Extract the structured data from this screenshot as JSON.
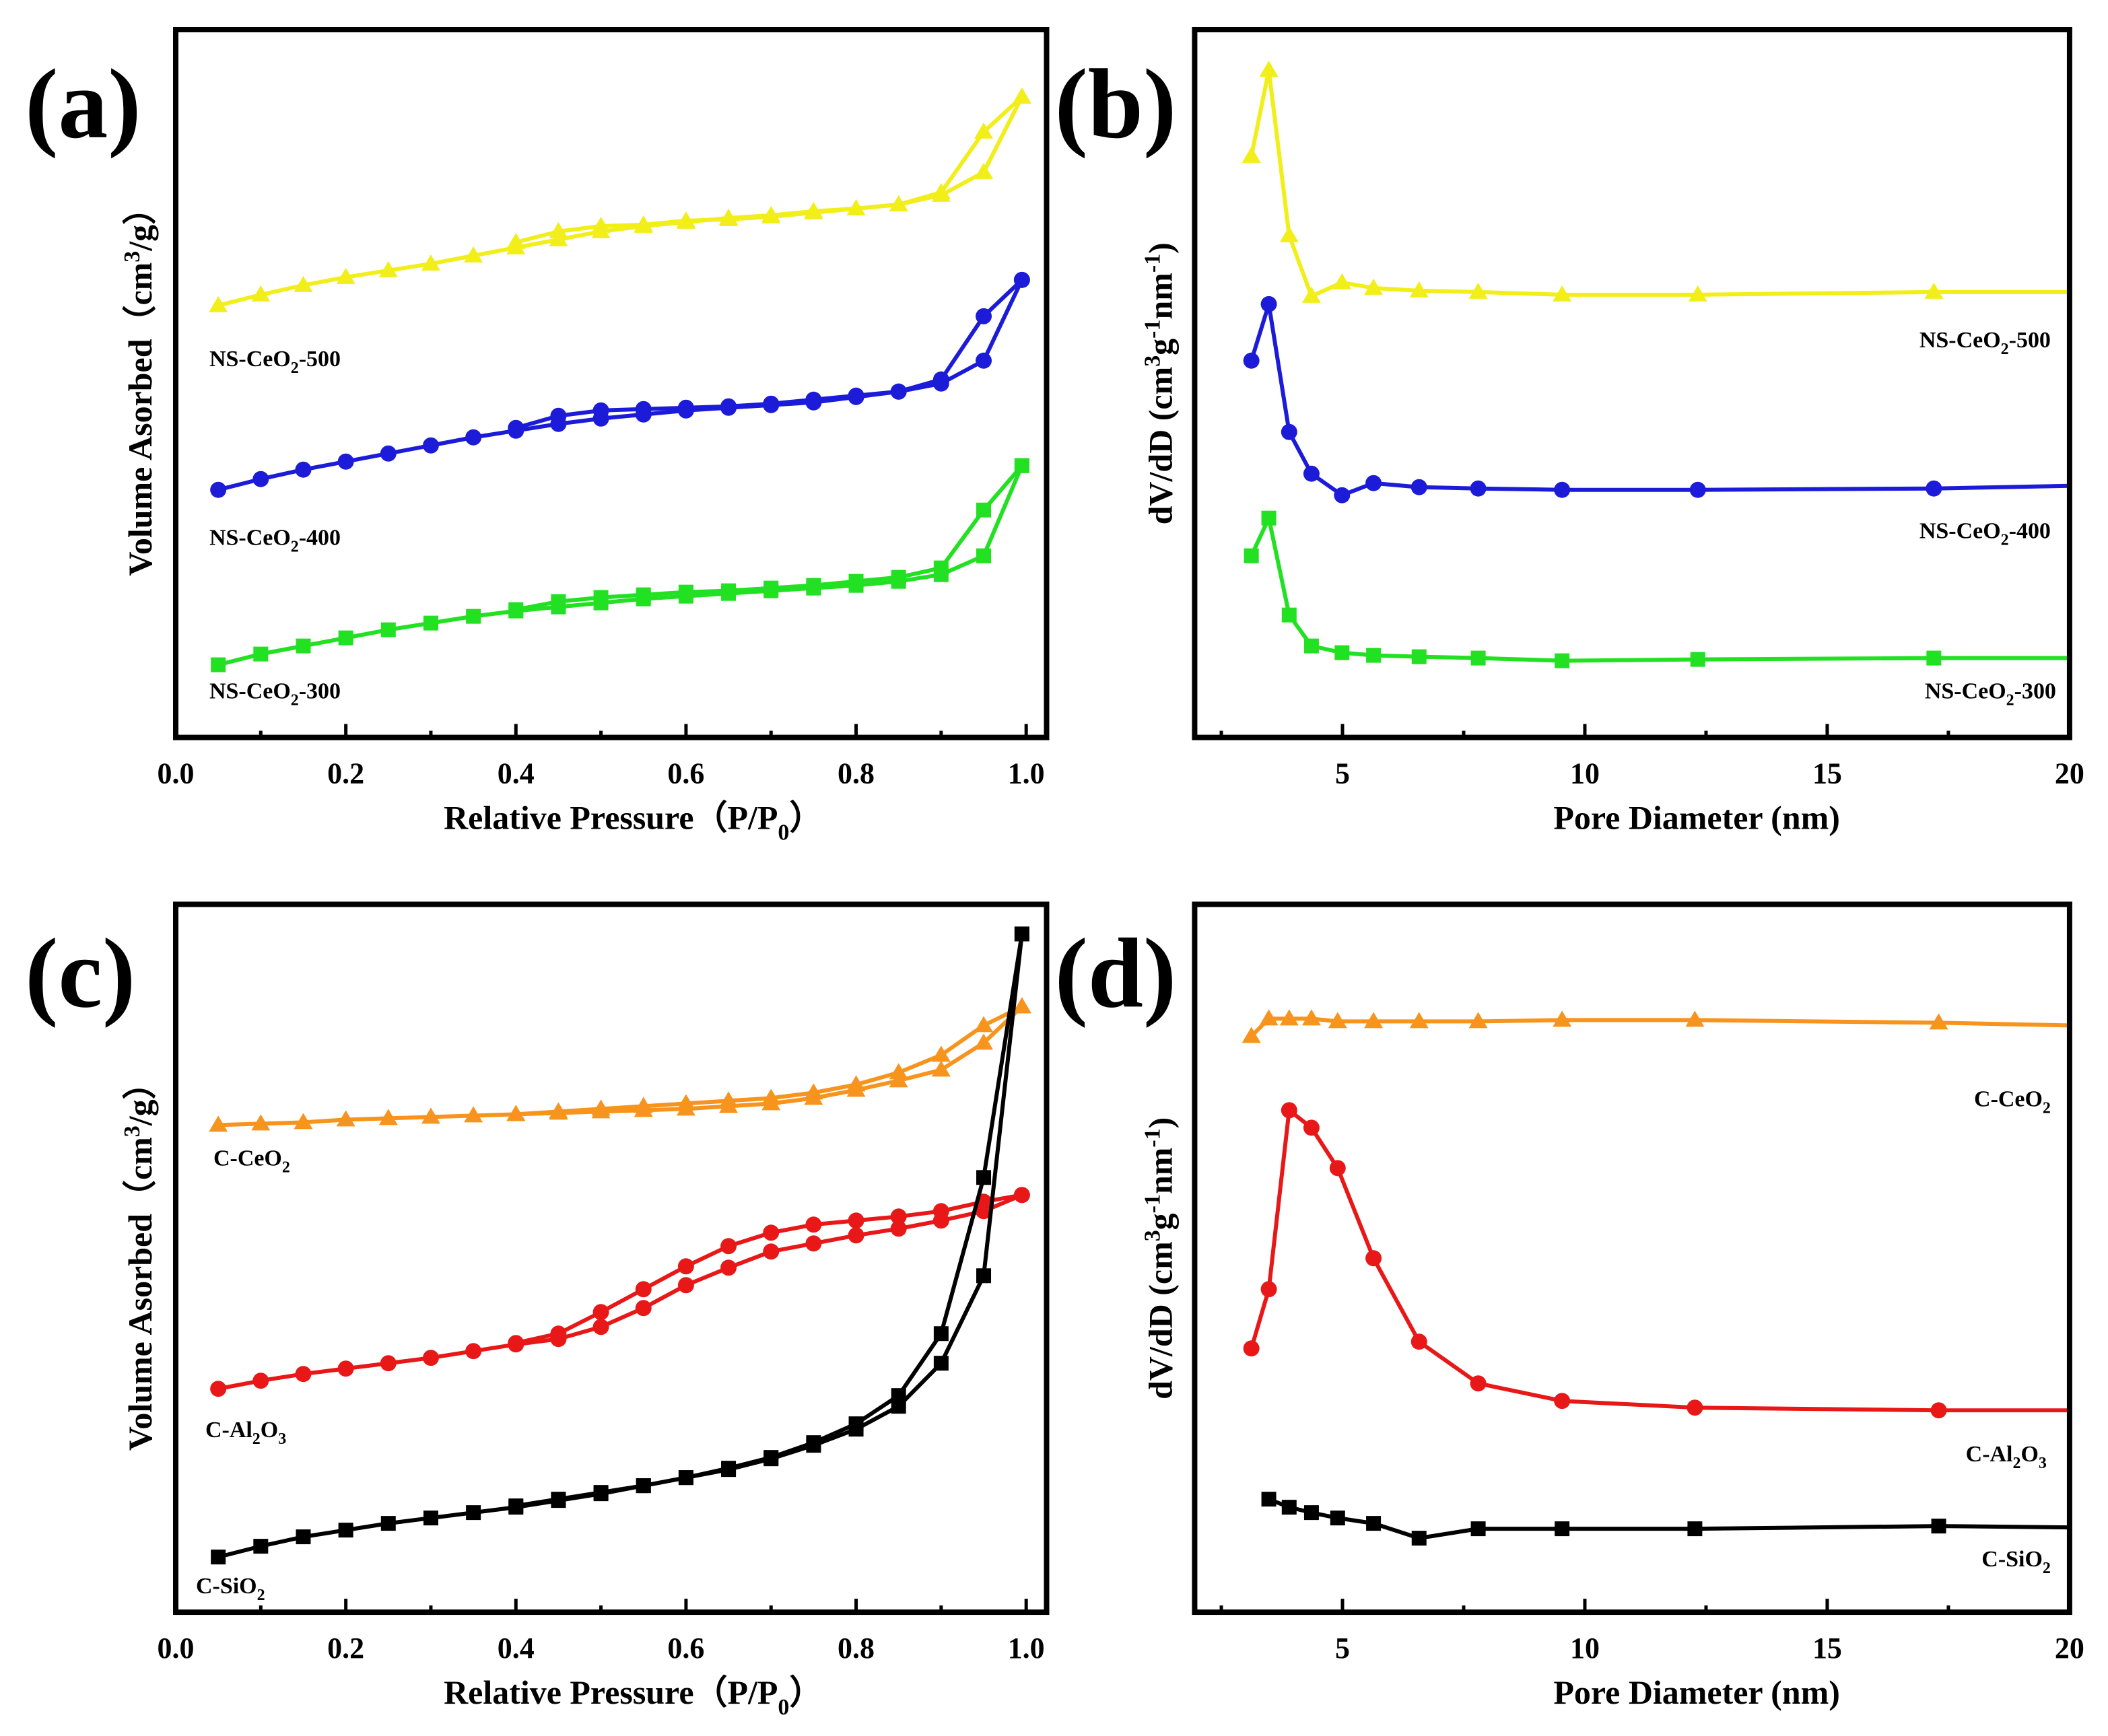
{
  "chart_data": [
    {
      "id": "a",
      "panel_label": "(a)",
      "type": "line",
      "xlabel": {
        "pre": "Relative Pressure（P/P",
        "sub": "0",
        "post": "）"
      },
      "ylabel": {
        "pre": "Volume Asorbed（cm",
        "sup": "3",
        "post": "/g）"
      },
      "xlim": [
        0,
        1.024
      ],
      "ylim": [
        0,
        105.2
      ],
      "xticks": [
        0.0,
        0.2,
        0.4,
        0.6,
        0.8,
        1.0
      ],
      "xtick_labels": [
        "0.0",
        "0.2",
        "0.4",
        "0.6",
        "0.8",
        "1.0"
      ],
      "minor_step": 0.1,
      "y_units": "arbitrary (curves offset)",
      "series": [
        {
          "name": "NS-CeO2-500",
          "label": {
            "pre": "NS-CeO",
            "sub": "2",
            "post": "-500"
          },
          "color": "#f2ee1a",
          "marker": "triangle",
          "adsorption": {
            "x": [
              0.05,
              0.1,
              0.15,
              0.2,
              0.25,
              0.3,
              0.35,
              0.4,
              0.45,
              0.5,
              0.55,
              0.6,
              0.65,
              0.7,
              0.75,
              0.8,
              0.85,
              0.9,
              0.95,
              0.995
            ],
            "y": [
              64.2,
              65.8,
              67.2,
              68.4,
              69.4,
              70.4,
              71.6,
              72.8,
              74,
              75.2,
              76,
              76.6,
              77.2,
              77.6,
              78.2,
              78.6,
              79.2,
              80.6,
              84,
              95.2
            ]
          },
          "desorption": {
            "x": [
              0.4,
              0.45,
              0.5,
              0.55,
              0.6,
              0.65,
              0.7,
              0.75,
              0.8,
              0.85,
              0.9,
              0.95,
              0.995
            ],
            "y": [
              73.6,
              75.2,
              76,
              76.2,
              76.8,
              77,
              77.4,
              78,
              78.6,
              79.2,
              81,
              90,
              95.2
            ]
          }
        },
        {
          "name": "NS-CeO2-400",
          "label": {
            "pre": "NS-CeO",
            "sub": "2",
            "post": "-400"
          },
          "color": "#1c1cd8",
          "marker": "circle",
          "adsorption": {
            "x": [
              0.05,
              0.1,
              0.15,
              0.2,
              0.25,
              0.3,
              0.35,
              0.4,
              0.45,
              0.5,
              0.55,
              0.6,
              0.65,
              0.7,
              0.75,
              0.8,
              0.85,
              0.9,
              0.95,
              0.995
            ],
            "y": [
              36.8,
              38.4,
              39.8,
              41,
              42.2,
              43.4,
              44.6,
              45.6,
              46.6,
              47.4,
              48,
              48.6,
              49,
              49.4,
              49.8,
              50.6,
              51.4,
              52.6,
              56,
              68
            ]
          },
          "desorption": {
            "x": [
              0.4,
              0.45,
              0.5,
              0.55,
              0.6,
              0.65,
              0.7,
              0.75,
              0.8,
              0.85,
              0.9,
              0.95,
              0.995
            ],
            "y": [
              46,
              47.8,
              48.6,
              48.8,
              49,
              49.2,
              49.6,
              50.2,
              50.8,
              51.4,
              53.2,
              62.6,
              68
            ]
          }
        },
        {
          "name": "NS-CeO2-300",
          "label": {
            "pre": "NS-CeO",
            "sub": "2",
            "post": "-300"
          },
          "color": "#22e022",
          "marker": "square",
          "adsorption": {
            "x": [
              0.05,
              0.1,
              0.15,
              0.2,
              0.25,
              0.3,
              0.35,
              0.4,
              0.45,
              0.5,
              0.55,
              0.6,
              0.65,
              0.7,
              0.75,
              0.8,
              0.85,
              0.9,
              0.95,
              0.995
            ],
            "y": [
              10.8,
              12.4,
              13.6,
              14.8,
              16,
              17,
              18,
              18.8,
              19.4,
              20,
              20.6,
              21,
              21.4,
              21.8,
              22.2,
              22.6,
              23.2,
              24.2,
              27,
              40.4
            ]
          },
          "desorption": {
            "x": [
              0.4,
              0.45,
              0.5,
              0.55,
              0.6,
              0.65,
              0.7,
              0.75,
              0.8,
              0.85,
              0.9,
              0.95,
              0.995
            ],
            "y": [
              19,
              20.2,
              20.8,
              21.2,
              21.6,
              21.8,
              22.2,
              22.6,
              23.2,
              23.8,
              25.2,
              33.8,
              40.4
            ]
          }
        }
      ]
    },
    {
      "id": "b",
      "panel_label": "(b)",
      "type": "line",
      "xlabel": {
        "pre": "Pore Diameter (nm)",
        "sub": "",
        "post": ""
      },
      "ylabel": {
        "pre": "dV/dD (cm",
        "sup": "3",
        "mid": "g",
        "sup2": "-1",
        "mid2": "nm",
        "sup3": "-1",
        "post": ")"
      },
      "xlim": [
        1.95,
        20
      ],
      "ylim": [
        0,
        105.2
      ],
      "xticks": [
        5,
        10,
        15,
        20
      ],
      "xtick_labels": [
        "5",
        "10",
        "15",
        "20"
      ],
      "minor_step": 2.5,
      "y_units": "arbitrary (curves offset)",
      "series": [
        {
          "name": "NS-CeO2-500",
          "label": {
            "pre": "NS-CeO",
            "sub": "2",
            "post": "-500"
          },
          "color": "#f2ee1a",
          "marker": "triangle",
          "x": [
            3.12,
            3.48,
            3.9,
            4.36,
            4.99,
            5.64,
            6.58,
            7.8,
            9.53,
            12.33,
            17.2,
            20
          ],
          "y": [
            86.4,
            99.2,
            74.6,
            65.6,
            67.6,
            66.8,
            66.4,
            66.2,
            65.8,
            65.8,
            66.2,
            66.2
          ]
        },
        {
          "name": "NS-CeO2-400",
          "label": {
            "pre": "NS-CeO",
            "sub": "2",
            "post": "-400"
          },
          "color": "#1c1cd8",
          "marker": "circle",
          "x": [
            3.12,
            3.48,
            3.9,
            4.36,
            4.99,
            5.64,
            6.58,
            7.8,
            9.53,
            12.33,
            17.2,
            20
          ],
          "y": [
            56,
            64.4,
            45.4,
            39.2,
            36,
            37.8,
            37.2,
            37,
            36.8,
            36.8,
            37,
            37.4
          ]
        },
        {
          "name": "NS-CeO2-300",
          "label": {
            "pre": "NS-CeO",
            "sub": "2",
            "post": "-300"
          },
          "color": "#22e022",
          "marker": "square",
          "x": [
            3.12,
            3.48,
            3.9,
            4.36,
            4.99,
            5.64,
            6.58,
            7.8,
            9.53,
            12.33,
            17.2,
            20
          ],
          "y": [
            27,
            32.6,
            18.2,
            13.6,
            12.6,
            12.2,
            12,
            11.8,
            11.4,
            11.6,
            11.8,
            11.8
          ]
        }
      ]
    },
    {
      "id": "c",
      "panel_label": "(c)",
      "type": "line",
      "xlabel": {
        "pre": "Relative Pressure（P/P",
        "sub": "0",
        "post": "）"
      },
      "ylabel": {
        "pre": "Volume Asorbed（cm",
        "sup": "3",
        "post": "/g）"
      },
      "xlim": [
        0,
        1.024
      ],
      "ylim": [
        0,
        105.2
      ],
      "xticks": [
        0.0,
        0.2,
        0.4,
        0.6,
        0.8,
        1.0
      ],
      "xtick_labels": [
        "0.0",
        "0.2",
        "0.4",
        "0.6",
        "0.8",
        "1.0"
      ],
      "minor_step": 0.1,
      "y_units": "arbitrary (curves offset)",
      "series": [
        {
          "name": "C-CeO2",
          "label": {
            "pre": "C-CeO",
            "sub": "2",
            "post": ""
          },
          "color": "#f7941d",
          "marker": "triangle",
          "adsorption": {
            "x": [
              0.05,
              0.1,
              0.15,
              0.2,
              0.25,
              0.3,
              0.35,
              0.4,
              0.45,
              0.5,
              0.55,
              0.6,
              0.65,
              0.7,
              0.75,
              0.8,
              0.85,
              0.9,
              0.95,
              0.995
            ],
            "y": [
              72.4,
              72.6,
              72.8,
              73.2,
              73.4,
              73.6,
              73.8,
              74,
              74.2,
              74.4,
              74.6,
              74.8,
              75.2,
              75.6,
              76.4,
              77.6,
              79,
              80.6,
              84.6,
              90
            ]
          },
          "desorption": {
            "x": [
              0.4,
              0.45,
              0.5,
              0.55,
              0.6,
              0.65,
              0.7,
              0.75,
              0.8,
              0.85,
              0.9,
              0.95,
              0.995
            ],
            "y": [
              74,
              74.4,
              74.8,
              75.2,
              75.6,
              76,
              76.4,
              77.2,
              78.4,
              80.2,
              82.8,
              87.2,
              90
            ]
          }
        },
        {
          "name": "C-Al2O3",
          "label": {
            "pre": "C-Al",
            "sub": "2",
            "post": "O",
            "sub2": "3"
          },
          "color": "#e81818",
          "marker": "circle",
          "adsorption": {
            "x": [
              0.05,
              0.1,
              0.15,
              0.2,
              0.25,
              0.3,
              0.35,
              0.4,
              0.45,
              0.5,
              0.55,
              0.6,
              0.65,
              0.7,
              0.75,
              0.8,
              0.85,
              0.9,
              0.95,
              0.995
            ],
            "y": [
              33.2,
              34.4,
              35.4,
              36.2,
              37,
              37.8,
              38.8,
              39.8,
              40.6,
              42.4,
              45.2,
              48.6,
              51.2,
              53.6,
              54.8,
              56,
              57,
              58.2,
              59.6,
              62
            ]
          },
          "desorption": {
            "x": [
              0.4,
              0.45,
              0.5,
              0.55,
              0.6,
              0.65,
              0.7,
              0.75,
              0.8,
              0.85,
              0.9,
              0.95,
              0.995
            ],
            "y": [
              40,
              41.4,
              44.6,
              48,
              51.4,
              54.4,
              56.4,
              57.6,
              58.2,
              58.8,
              59.6,
              61,
              62
            ]
          }
        },
        {
          "name": "C-SiO2",
          "label": {
            "pre": "C-SiO",
            "sub": "2",
            "post": ""
          },
          "color": "#000000",
          "marker": "square",
          "adsorption": {
            "x": [
              0.05,
              0.1,
              0.15,
              0.2,
              0.25,
              0.3,
              0.35,
              0.4,
              0.45,
              0.5,
              0.55,
              0.6,
              0.65,
              0.7,
              0.75,
              0.8,
              0.85,
              0.9,
              0.95,
              0.995
            ],
            "y": [
              8.2,
              9.8,
              11.2,
              12.2,
              13.2,
              14,
              14.8,
              15.6,
              16.6,
              17.6,
              18.8,
              20,
              21.2,
              22.8,
              24.8,
              27.2,
              30.6,
              37,
              50,
              100.8
            ]
          },
          "desorption": {
            "x": [
              0.4,
              0.45,
              0.5,
              0.55,
              0.6,
              0.65,
              0.7,
              0.75,
              0.8,
              0.85,
              0.9,
              0.95,
              0.995
            ],
            "y": [
              15.8,
              16.8,
              17.8,
              18.8,
              20,
              21.4,
              23,
              25.2,
              28,
              32.2,
              41.4,
              64.6,
              100.8
            ]
          }
        }
      ]
    },
    {
      "id": "d",
      "panel_label": "(d)",
      "type": "line",
      "xlabel": {
        "pre": "Pore Diameter (nm)",
        "sub": "",
        "post": ""
      },
      "ylabel": {
        "pre": "dV/dD (cm",
        "sup": "3",
        "mid": "g",
        "sup2": "-1",
        "mid2": "nm",
        "sup3": "-1",
        "post": ")"
      },
      "xlim": [
        1.95,
        20
      ],
      "ylim": [
        0,
        105.2
      ],
      "xticks": [
        5,
        10,
        15,
        20
      ],
      "xtick_labels": [
        "5",
        "10",
        "15",
        "20"
      ],
      "minor_step": 2.5,
      "y_units": "arbitrary (curves offset)",
      "series": [
        {
          "name": "C-CeO2",
          "label": {
            "pre": "C-CeO",
            "sub": "2",
            "post": ""
          },
          "color": "#f7941d",
          "marker": "triangle",
          "x": [
            3.12,
            3.48,
            3.9,
            4.36,
            4.9,
            5.64,
            6.58,
            7.8,
            9.53,
            12.27,
            17.3,
            20
          ],
          "y": [
            85.6,
            88.2,
            88.2,
            88.2,
            87.8,
            87.8,
            87.8,
            87.8,
            88,
            88,
            87.6,
            87.2
          ]
        },
        {
          "name": "C-Al2O3",
          "label": {
            "pre": "C-Al",
            "sub": "2",
            "post": "O",
            "sub2": "3"
          },
          "color": "#e81818",
          "marker": "circle",
          "x": [
            3.12,
            3.48,
            3.9,
            4.36,
            4.9,
            5.64,
            6.58,
            7.8,
            9.53,
            12.27,
            17.3,
            20
          ],
          "y": [
            39.2,
            48,
            74.6,
            72,
            66,
            52.6,
            40.2,
            34,
            31.4,
            30.4,
            30,
            30
          ]
        },
        {
          "name": "C-SiO2",
          "label": {
            "pre": "C-SiO",
            "sub": "2",
            "post": ""
          },
          "color": "#000000",
          "marker": "square",
          "x": [
            3.48,
            3.9,
            4.36,
            4.9,
            5.64,
            6.58,
            7.8,
            9.53,
            12.27,
            17.3,
            20
          ],
          "y": [
            16.8,
            15.6,
            14.8,
            14,
            13.2,
            11,
            12.4,
            12.4,
            12.4,
            12.8,
            12.6
          ]
        }
      ]
    }
  ]
}
